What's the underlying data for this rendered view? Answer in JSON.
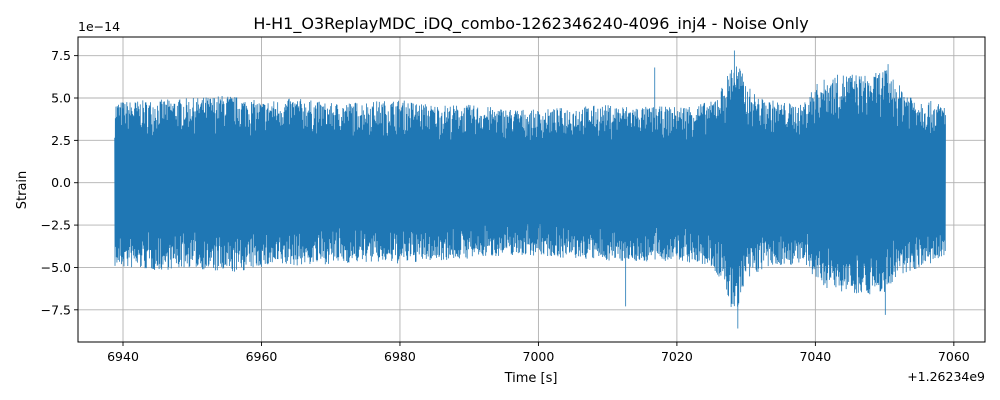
{
  "chart_data": {
    "type": "line",
    "title": "H-H1_O3ReplayMDC_iDQ_combo-1262346240-4096_inj4 - Noise Only",
    "xlabel": "Time [s]",
    "ylabel": "Strain",
    "x_offset_label": "+1.26234e9",
    "y_scale_label": "1e−14",
    "xlim": [
      6933.5,
      7064.5
    ],
    "ylim": [
      -9.4,
      8.6
    ],
    "x_ticks": [
      6940,
      6960,
      6980,
      7000,
      7020,
      7040,
      7060
    ],
    "x_tick_labels": [
      "6940",
      "6960",
      "6980",
      "7000",
      "7020",
      "7040",
      "7060"
    ],
    "y_ticks": [
      -7.5,
      -5.0,
      -2.5,
      0.0,
      2.5,
      5.0,
      7.5
    ],
    "y_tick_labels": [
      "−7.5",
      "−5.0",
      "−2.5",
      "0.0",
      "2.5",
      "5.0",
      "7.5"
    ],
    "grid": true,
    "series": [
      {
        "color": "#1f77b4",
        "x_range": [
          6938.8,
          7058.8
        ],
        "envelope_x": [
          6938.8,
          6945,
          6950,
          6955,
          6960,
          6965,
          6970,
          6975,
          6980,
          6985,
          6990,
          6995,
          7000,
          7005,
          7010,
          7015,
          7020,
          7025,
          7027,
          7028,
          7029,
          7030,
          7032,
          7035,
          7038,
          7040,
          7042,
          7045,
          7048,
          7050,
          7052,
          7055,
          7058.8
        ],
        "envelope_upper": [
          4.8,
          4.9,
          5.0,
          5.2,
          4.8,
          5.0,
          4.7,
          4.8,
          4.9,
          4.6,
          4.6,
          4.4,
          4.3,
          4.5,
          4.6,
          4.5,
          4.5,
          4.8,
          6.0,
          7.2,
          7.0,
          5.8,
          5.0,
          4.8,
          4.6,
          5.8,
          6.3,
          6.5,
          6.3,
          6.8,
          5.8,
          5.0,
          4.6
        ],
        "envelope_lower": [
          -5.0,
          -5.2,
          -5.0,
          -5.4,
          -5.0,
          -4.9,
          -4.8,
          -4.7,
          -4.8,
          -4.6,
          -4.5,
          -4.3,
          -4.3,
          -4.5,
          -4.6,
          -4.7,
          -4.6,
          -5.0,
          -6.2,
          -7.8,
          -7.2,
          -6.0,
          -5.2,
          -4.9,
          -4.8,
          -5.8,
          -6.3,
          -6.5,
          -6.6,
          -6.5,
          -5.6,
          -5.0,
          -4.6
        ],
        "peaks": [
          {
            "x": 7012.6,
            "y": -7.3
          },
          {
            "x": 7016.8,
            "y": 6.8
          },
          {
            "x": 7028.3,
            "y": 7.8
          },
          {
            "x": 7028.8,
            "y": -8.6
          },
          {
            "x": 7050.1,
            "y": -7.8
          },
          {
            "x": 7050.5,
            "y": 7.0
          }
        ]
      }
    ]
  }
}
